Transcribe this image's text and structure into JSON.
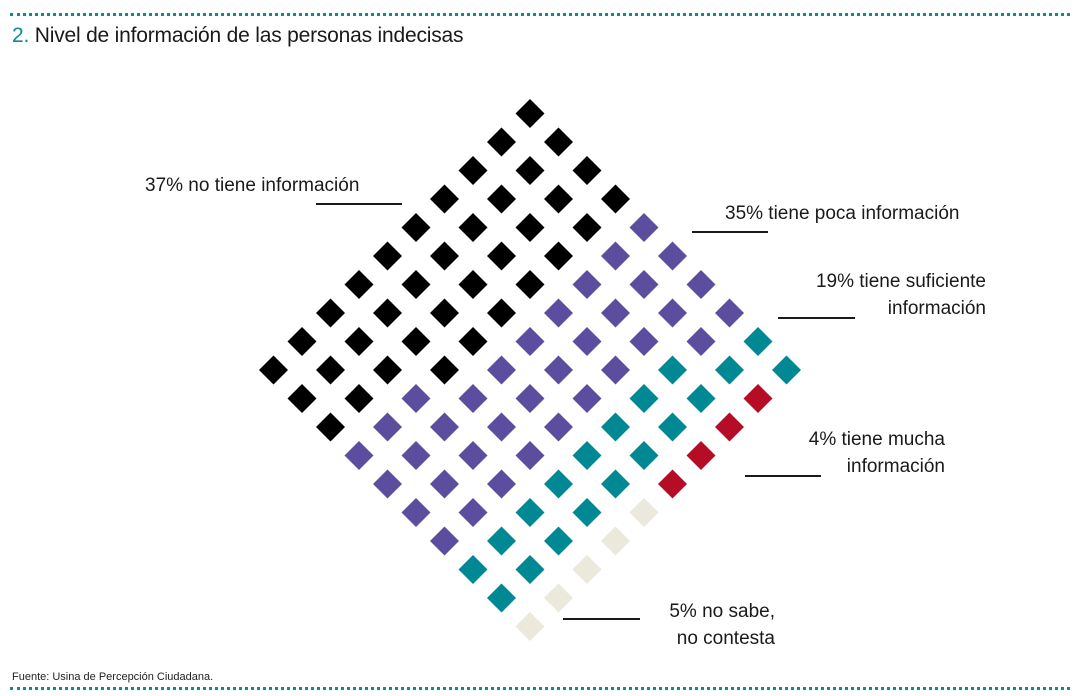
{
  "header": {
    "number": "2.",
    "title": "Nivel de información de las personas indecisas"
  },
  "source": "Fuente: Usina de Percepción Ciudadana.",
  "labels": {
    "no_info": [
      "37% no tiene información"
    ],
    "poca": [
      "35% tiene poca información"
    ],
    "suficiente": [
      "19% tiene suficiente",
      "información"
    ],
    "mucha": [
      "4% tiene mucha",
      "información"
    ],
    "ns_nc": [
      "5% no sabe,",
      "no contesta"
    ]
  },
  "colors": {
    "accent": "#0e8a96",
    "no_info": "#000000",
    "poca": "#5c4d9e",
    "suficiente": "#008894",
    "mucha": "#b60d27",
    "ns_nc": "#ebe8dc"
  },
  "chart_data": {
    "type": "waffle",
    "total_cells": 100,
    "series": [
      {
        "name": "37% no tiene información",
        "value": 37,
        "color": "#000000"
      },
      {
        "name": "35% tiene poca información",
        "value": 35,
        "color": "#5c4d9e"
      },
      {
        "name": "19% tiene suficiente información",
        "value": 19,
        "color": "#008894"
      },
      {
        "name": "4% tiene mucha información",
        "value": 4,
        "color": "#b60d27"
      },
      {
        "name": "5% no sabe, no contesta",
        "value": 5,
        "color": "#ebe8dc"
      }
    ]
  }
}
